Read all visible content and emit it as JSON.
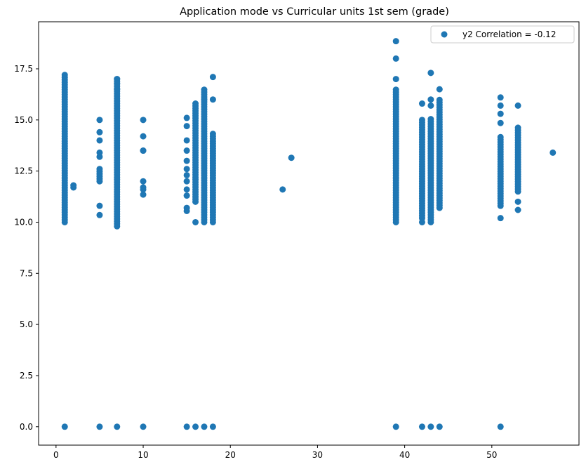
{
  "chart_data": {
    "type": "scatter",
    "title": "Application mode vs Curricular units 1st sem (grade)",
    "xlabel": "",
    "ylabel": "",
    "xlim": [
      -2,
      60
    ],
    "ylim": [
      -0.9,
      19.8
    ],
    "xticks": [
      0,
      10,
      20,
      30,
      40,
      50
    ],
    "xtick_labels": [
      "0",
      "10",
      "20",
      "30",
      "40",
      "50"
    ],
    "yticks": [
      0,
      2.5,
      5,
      7.5,
      10,
      12.5,
      15,
      17.5
    ],
    "ytick_labels": [
      "0.0",
      "2.5",
      "5.0",
      "7.5",
      "10.0",
      "12.5",
      "15.0",
      "17.5"
    ],
    "grid": false,
    "legend": "top-right",
    "marker_color": "#1f77b4",
    "series": [
      {
        "name": "y2 Correlation = -0.12",
        "color": "#1f77b4",
        "columns": [
          {
            "x": 1,
            "min": 10.0,
            "max": 17.3,
            "zero": true
          },
          {
            "x": 5,
            "min": 12.0,
            "max": 12.7,
            "zero": true
          },
          {
            "x": 7,
            "min": 9.8,
            "max": 17.1,
            "zero": true
          },
          {
            "x": 16,
            "min": 11.0,
            "max": 15.8,
            "zero": true
          },
          {
            "x": 17,
            "min": 10.0,
            "max": 16.5,
            "zero": true
          },
          {
            "x": 18,
            "min": 10.0,
            "max": 14.4,
            "zero": true
          },
          {
            "x": 39,
            "min": 10.0,
            "max": 16.5,
            "zero": true
          },
          {
            "x": 42,
            "min": 10.2,
            "max": 15.1,
            "zero": true
          },
          {
            "x": 43,
            "min": 10.0,
            "max": 15.1,
            "zero": true
          },
          {
            "x": 44,
            "min": 10.7,
            "max": 16.0,
            "zero": true
          },
          {
            "x": 51,
            "min": 10.8,
            "max": 14.2,
            "zero": true
          },
          {
            "x": 53,
            "min": 11.5,
            "max": 14.7,
            "zero": false
          }
        ],
        "points": [
          [
            2,
            11.7
          ],
          [
            2,
            11.8
          ],
          [
            5,
            10.35
          ],
          [
            5,
            10.8
          ],
          [
            5,
            13.2
          ],
          [
            5,
            13.4
          ],
          [
            5,
            14.0
          ],
          [
            5,
            14.4
          ],
          [
            5,
            15.0
          ],
          [
            7,
            17.0
          ],
          [
            7,
            16.8
          ],
          [
            7,
            16.5
          ],
          [
            10,
            0
          ],
          [
            10,
            11.35
          ],
          [
            10,
            11.6
          ],
          [
            10,
            11.7
          ],
          [
            10,
            12.0
          ],
          [
            10,
            13.5
          ],
          [
            10,
            13.5
          ],
          [
            10,
            14.2
          ],
          [
            10,
            15.0
          ],
          [
            15,
            0
          ],
          [
            15,
            10.55
          ],
          [
            15,
            10.7
          ],
          [
            15,
            11.3
          ],
          [
            15,
            11.6
          ],
          [
            15,
            12.0
          ],
          [
            15,
            12.3
          ],
          [
            15,
            12.6
          ],
          [
            15,
            13.0
          ],
          [
            15,
            13.5
          ],
          [
            15,
            14.0
          ],
          [
            15,
            14.7
          ],
          [
            15,
            15.1
          ],
          [
            16,
            10.0
          ],
          [
            17,
            16.0
          ],
          [
            18,
            16.0
          ],
          [
            18,
            17.1
          ],
          [
            26,
            11.6
          ],
          [
            27,
            13.15
          ],
          [
            39,
            17.0
          ],
          [
            39,
            18.0
          ],
          [
            39,
            18.85
          ],
          [
            42,
            10.0
          ],
          [
            42,
            15.8
          ],
          [
            43,
            17.3
          ],
          [
            43,
            15.7
          ],
          [
            43,
            16.0
          ],
          [
            44,
            16.5
          ],
          [
            51,
            10.2
          ],
          [
            51,
            14.85
          ],
          [
            51,
            15.3
          ],
          [
            51,
            15.7
          ],
          [
            51,
            16.1
          ],
          [
            53,
            10.6
          ],
          [
            53,
            11.0
          ],
          [
            53,
            15.7
          ],
          [
            57,
            13.4
          ]
        ]
      }
    ]
  }
}
